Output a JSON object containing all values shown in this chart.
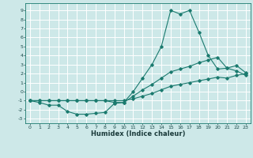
{
  "xlabel": "Humidex (Indice chaleur)",
  "ylabel": "",
  "bg_color": "#cde8e8",
  "grid_color": "#ffffff",
  "line_color": "#1a7a6e",
  "xlim": [
    -0.5,
    23.5
  ],
  "ylim": [
    -3.5,
    9.8
  ],
  "xticks": [
    0,
    1,
    2,
    3,
    4,
    5,
    6,
    7,
    8,
    9,
    10,
    11,
    12,
    13,
    14,
    15,
    16,
    17,
    18,
    19,
    20,
    21,
    22,
    23
  ],
  "yticks": [
    -3,
    -2,
    -1,
    0,
    1,
    2,
    3,
    4,
    5,
    6,
    7,
    8,
    9
  ],
  "line1_x": [
    0,
    1,
    2,
    3,
    4,
    5,
    6,
    7,
    8,
    9,
    10,
    11,
    12,
    13,
    14,
    15,
    16,
    17,
    18,
    19,
    20,
    21,
    22,
    23
  ],
  "line1_y": [
    -1,
    -1.2,
    -1.5,
    -1.5,
    -2.2,
    -2.5,
    -2.5,
    -2.4,
    -2.3,
    -1.3,
    -1.2,
    0.0,
    1.5,
    3.0,
    5.0,
    9.0,
    8.6,
    9.0,
    6.6,
    4.0,
    2.5,
    2.6,
    2.3,
    1.8
  ],
  "line2_x": [
    0,
    1,
    2,
    3,
    4,
    5,
    6,
    7,
    8,
    9,
    10,
    11,
    12,
    13,
    14,
    15,
    16,
    17,
    18,
    19,
    20,
    21,
    22,
    23
  ],
  "line2_y": [
    -1,
    -1,
    -1,
    -1,
    -1,
    -1,
    -1,
    -1,
    -1,
    -1.2,
    -1.2,
    -0.5,
    0.2,
    0.8,
    1.5,
    2.2,
    2.5,
    2.8,
    3.2,
    3.5,
    3.8,
    2.6,
    2.9,
    2.1
  ],
  "line3_x": [
    0,
    1,
    2,
    3,
    4,
    5,
    6,
    7,
    8,
    9,
    10,
    11,
    12,
    13,
    14,
    15,
    16,
    17,
    18,
    19,
    20,
    21,
    22,
    23
  ],
  "line3_y": [
    -1,
    -1,
    -1,
    -1,
    -1,
    -1,
    -1,
    -1,
    -1,
    -1,
    -1,
    -0.8,
    -0.5,
    -0.2,
    0.2,
    0.6,
    0.8,
    1.0,
    1.2,
    1.4,
    1.6,
    1.5,
    1.8,
    2.0
  ]
}
